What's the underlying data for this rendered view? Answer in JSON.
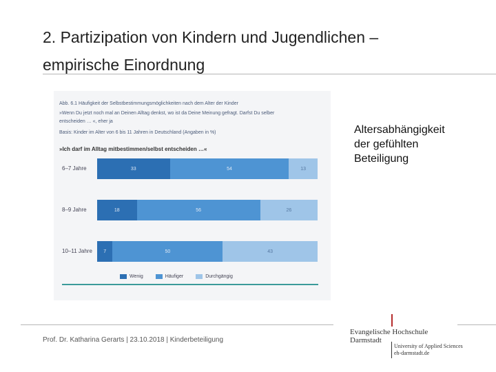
{
  "slide": {
    "title_line1": "2. Partizipation von Kindern und Jugendlichen –",
    "title_line2": "empirische Einordnung",
    "side_note_lines": [
      "Altersabhängigkeit",
      "der gefühlten",
      "Beteiligung"
    ],
    "footer": "Prof. Dr. Katharina Gerarts | 23.10.2018 | Kinderbeteiligung"
  },
  "figure": {
    "title_prefix": "Abb. 6.1",
    "title": "Häufigkeit der Selbstbestimmungsmöglichkeiten nach dem Alter der Kinder",
    "question_intro_1": "»Wenn Du jetzt noch mal an Deinen Alltag denkst, wo ist da Deine Meinung gefragt. Darfst Du selber",
    "question_intro_2": "entscheiden … «, eher ja",
    "basis": "Basis: Kinder im Alter von 6 bis 11 Jahren in Deutschland (Angaben in %)",
    "question": "»Ich darf im Alltag mitbestimmen/selbst entscheiden …«"
  },
  "chart_data": {
    "type": "bar",
    "orientation": "horizontal",
    "stacked": true,
    "title": "Häufigkeit der Selbstbestimmungsmöglichkeiten nach dem Alter der Kinder",
    "categories": [
      "6–7 Jahre",
      "8–9 Jahre",
      "10–11 Jahre"
    ],
    "series": [
      {
        "name": "Wenig",
        "values": [
          33,
          18,
          7
        ],
        "color": "#2c6fb3"
      },
      {
        "name": "Häufiger",
        "values": [
          54,
          56,
          50
        ],
        "color": "#4e94d3"
      },
      {
        "name": "Durchgängig",
        "values": [
          13,
          26,
          43
        ],
        "color": "#9fc5e8"
      }
    ],
    "xlim": [
      0,
      100
    ],
    "legend_position": "bottom"
  },
  "logo": {
    "name_line1": "Evangelische Hochschule",
    "name_line2": "Darmstadt",
    "sub_line1": "University of Applied Sciences",
    "sub_line2": "eh-darmstadt.de"
  }
}
